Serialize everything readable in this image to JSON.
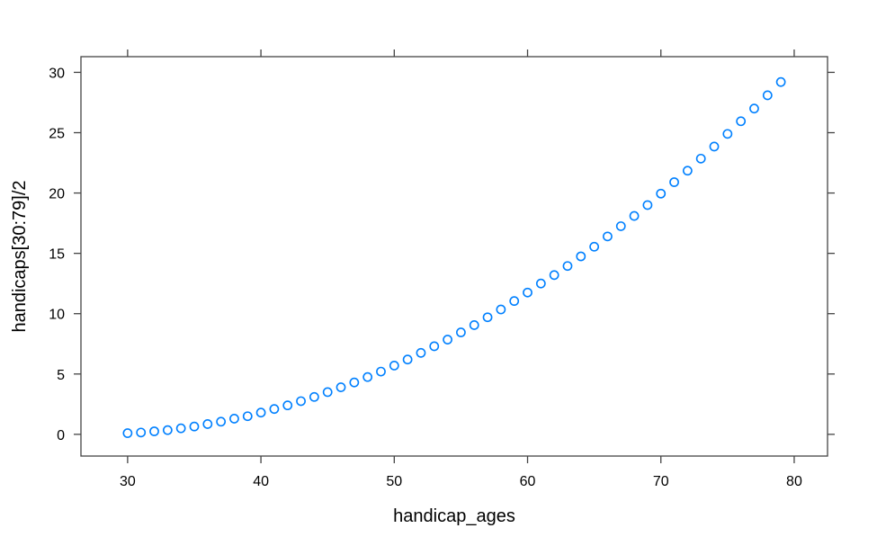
{
  "chart_data": {
    "type": "scatter",
    "title": "",
    "xlabel": "handicap_ages",
    "ylabel": "handicaps[30:79]/2",
    "xlim": [
      26.5,
      82.5
    ],
    "ylim": [
      -1.8,
      31.3
    ],
    "x_ticks": [
      30,
      40,
      50,
      60,
      70,
      80
    ],
    "y_ticks": [
      0,
      5,
      10,
      15,
      20,
      25,
      30
    ],
    "grid": false,
    "marker": "open-circle",
    "point_color": "#0080ff",
    "series": [
      {
        "x": [
          30,
          31,
          32,
          33,
          34,
          35,
          36,
          37,
          38,
          39,
          40,
          41,
          42,
          43,
          44,
          45,
          46,
          47,
          48,
          49,
          50,
          51,
          52,
          53,
          54,
          55,
          56,
          57,
          58,
          59,
          60,
          61,
          62,
          63,
          64,
          65,
          66,
          67,
          68,
          69,
          70,
          71,
          72,
          73,
          74,
          75,
          76,
          77,
          78,
          79
        ],
        "y": [
          0.1,
          0.15,
          0.25,
          0.35,
          0.5,
          0.65,
          0.85,
          1.05,
          1.3,
          1.5,
          1.8,
          2.1,
          2.4,
          2.75,
          3.1,
          3.5,
          3.9,
          4.3,
          4.75,
          5.2,
          5.7,
          6.2,
          6.75,
          7.3,
          7.85,
          8.45,
          9.05,
          9.7,
          10.35,
          11.05,
          11.75,
          12.5,
          13.2,
          13.95,
          14.75,
          15.55,
          16.4,
          17.25,
          18.1,
          19.0,
          19.95,
          20.9,
          21.85,
          22.85,
          23.85,
          24.9,
          25.95,
          27.0,
          28.1,
          29.2
        ]
      }
    ]
  }
}
